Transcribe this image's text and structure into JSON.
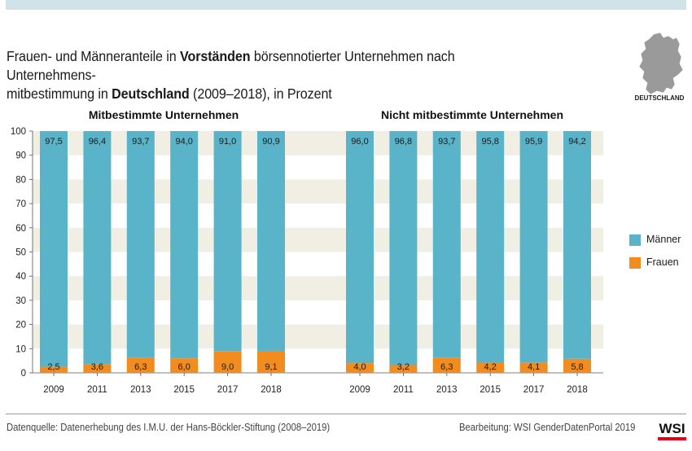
{
  "header": {
    "title_part1": "Frauen- und Männeranteile in ",
    "title_bold1": "Vorständen",
    "title_part2": " börsennotierter Unternehmen nach Unternehmens-",
    "title_part3": "mitbestimmung in ",
    "title_bold2": "Deutschland",
    "title_part4": " (2009–2018), in Prozent",
    "map_label": "DEUTSCHLAND"
  },
  "footer": {
    "source": "Datenquelle: Datenerhebung des I.M.U. der Hans-Böckler-Stiftung (2008–2019)",
    "credit": "Bearbeitung: WSI GenderDatenPortal 2019",
    "logo": "WSI"
  },
  "legend": {
    "men": "Männer",
    "women": "Frauen"
  },
  "colors": {
    "men": "#5ab4c9",
    "women": "#f28c1e",
    "band": "#f1efe3",
    "brand_red": "#e2001a"
  },
  "chart_data": {
    "type": "bar",
    "stacked": true,
    "ylim": [
      0,
      100
    ],
    "yticks": [
      0,
      10,
      20,
      30,
      40,
      50,
      60,
      70,
      80,
      90,
      100
    ],
    "panels": [
      {
        "title": "Mitbestimmte Unternehmen",
        "categories": [
          "2009",
          "2011",
          "2013",
          "2015",
          "2017",
          "2018"
        ],
        "series": [
          {
            "name": "Frauen",
            "values": [
              2.5,
              3.6,
              6.3,
              6.0,
              9.0,
              9.1
            ],
            "labels": [
              "2,5",
              "3,6",
              "6,3",
              "6,0",
              "9,0",
              "9,1"
            ]
          },
          {
            "name": "Männer",
            "values": [
              97.5,
              96.4,
              93.7,
              94.0,
              91.0,
              90.9
            ],
            "labels": [
              "97,5",
              "96,4",
              "93,7",
              "94,0",
              "91,0",
              "90,9"
            ]
          }
        ]
      },
      {
        "title": "Nicht mitbestimmte Unternehmen",
        "categories": [
          "2009",
          "2011",
          "2013",
          "2015",
          "2017",
          "2018"
        ],
        "series": [
          {
            "name": "Frauen",
            "values": [
              4.0,
              3.2,
              6.3,
              4.2,
              4.1,
              5.8
            ],
            "labels": [
              "4,0",
              "3,2",
              "6,3",
              "4,2",
              "4,1",
              "5,8"
            ]
          },
          {
            "name": "Männer",
            "values": [
              96.0,
              96.8,
              93.7,
              95.8,
              95.9,
              94.2
            ],
            "labels": [
              "96,0",
              "96,8",
              "93,7",
              "95,8",
              "95,9",
              "94,2"
            ]
          }
        ]
      }
    ]
  }
}
